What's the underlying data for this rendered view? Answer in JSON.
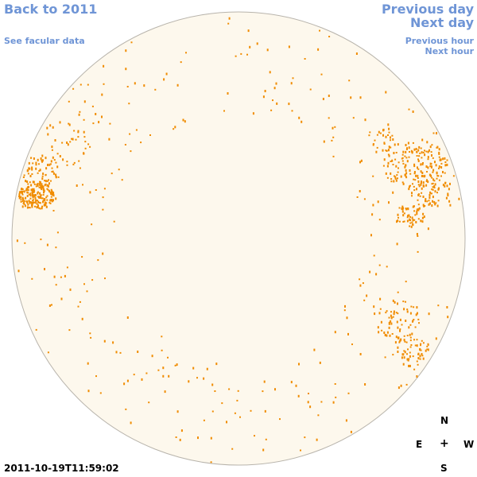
{
  "nav": {
    "back_label": "Back to 2011",
    "facular_label": "See facular data",
    "prev_day_label": "Previous day",
    "next_day_label": "Next day",
    "prev_hour_label": "Previous hour",
    "next_hour_label": "Next hour"
  },
  "compass": {
    "n": "N",
    "e": "E",
    "center": "+",
    "w": "W",
    "s": "S"
  },
  "timestamp": "2011-10-19T11:59:02",
  "colors": {
    "link": "#6f95d6",
    "disk_fill": "#fdf8ed",
    "disk_stroke": "#b8b4ac",
    "feature": "#f08c00"
  }
}
